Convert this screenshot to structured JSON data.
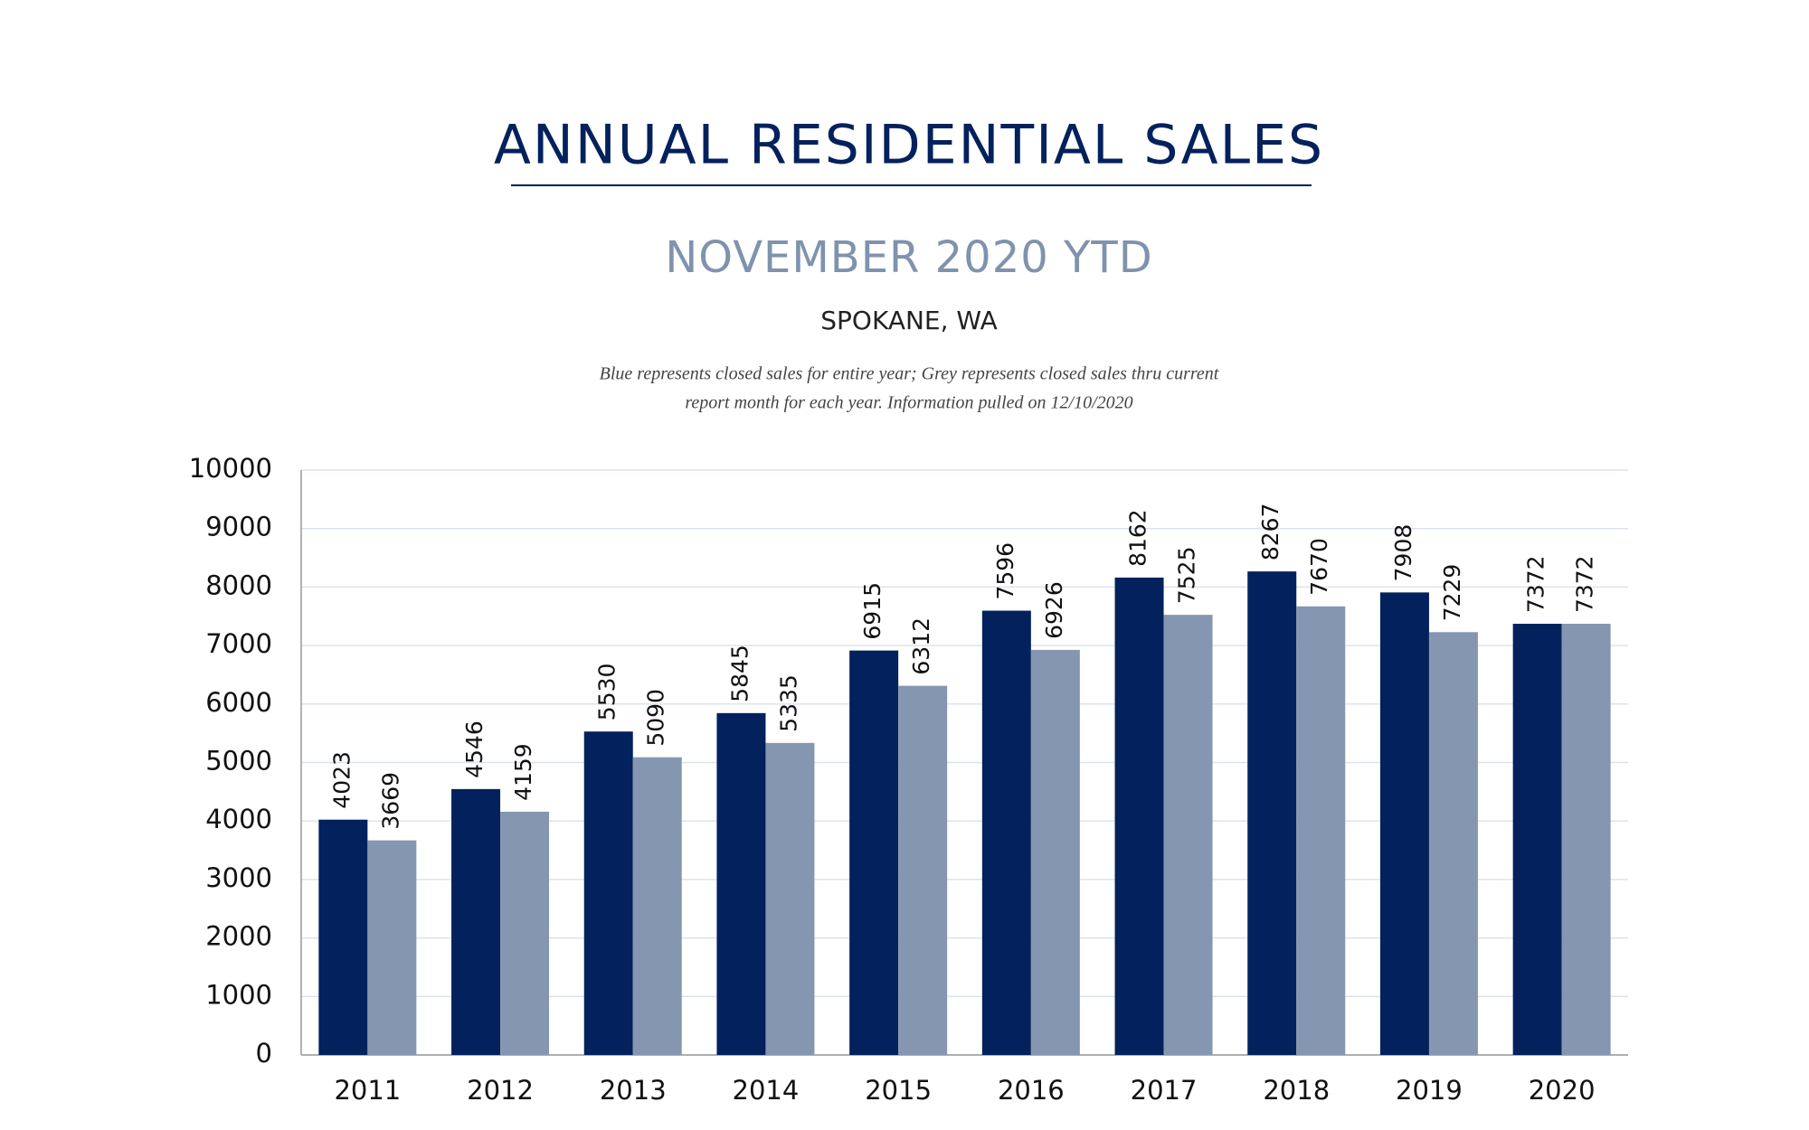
{
  "chart_data": {
    "type": "bar",
    "title": "ANNUAL RESIDENTIAL SALES",
    "subtitle": "NOVEMBER 2020 YTD",
    "location": "SPOKANE, WA",
    "notes": [
      "Blue represents closed sales for entire year; Grey represents closed sales thru current",
      "report month for each year.  Information pulled on 12/10/2020"
    ],
    "categories": [
      "2011",
      "2012",
      "2013",
      "2014",
      "2015",
      "2016",
      "2017",
      "2018",
      "2019",
      "2020"
    ],
    "series": [
      {
        "color": "#03215c",
        "values": [
          4023,
          4546,
          5530,
          5845,
          6915,
          7596,
          8162,
          8267,
          7908,
          7372
        ]
      },
      {
        "color": "#8597b0",
        "values": [
          3669,
          4159,
          5090,
          5335,
          6312,
          6926,
          7525,
          7670,
          7229,
          7372
        ]
      }
    ],
    "ylim": [
      0,
      10000
    ],
    "yticks": [
      0,
      1000,
      2000,
      3000,
      4000,
      5000,
      6000,
      7000,
      8000,
      9000,
      10000
    ],
    "grid": true
  }
}
